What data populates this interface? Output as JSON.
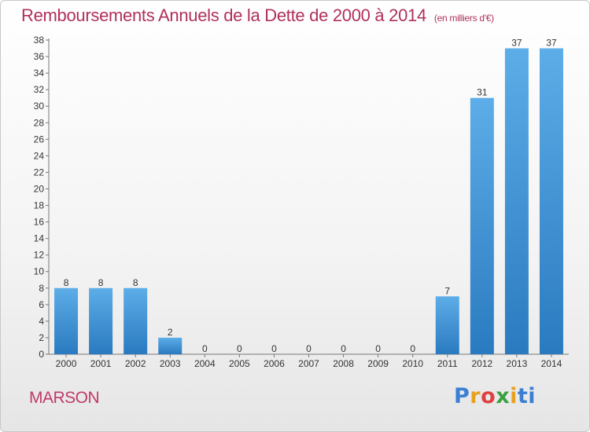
{
  "page": {
    "location": "MARSON",
    "logo_text": "Proxiti",
    "logo_letters": [
      "P",
      "r",
      "o",
      "x",
      "i",
      "ti"
    ]
  },
  "chart_data": {
    "type": "bar",
    "title": "Remboursements Annuels de la Dette de 2000 à 2014",
    "unit_note": "(en milliers d'€)",
    "categories": [
      "2000",
      "2001",
      "2002",
      "2003",
      "2004",
      "2005",
      "2006",
      "2007",
      "2008",
      "2009",
      "2010",
      "2011",
      "2012",
      "2013",
      "2014"
    ],
    "values": [
      8,
      8,
      8,
      2,
      0,
      0,
      0,
      0,
      0,
      0,
      0,
      7,
      31,
      37,
      37
    ],
    "yticks": [
      0,
      2,
      4,
      6,
      8,
      10,
      12,
      14,
      16,
      18,
      20,
      22,
      24,
      26,
      28,
      30,
      32,
      34,
      36,
      38
    ],
    "ylim": [
      0,
      38
    ],
    "grid": false,
    "colors": {
      "bar_light": "#5dade8",
      "bar_dark": "#2a7ac0",
      "title": "#b0305e"
    }
  }
}
